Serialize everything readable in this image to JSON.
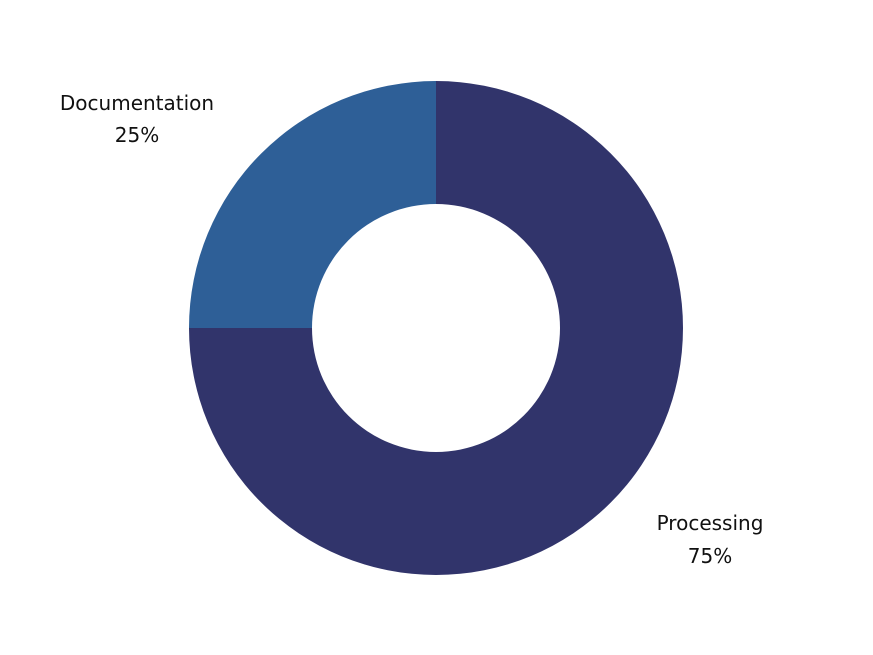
{
  "chart_data": {
    "type": "pie",
    "donut": true,
    "title": "",
    "slices": [
      {
        "label": "Processing",
        "value": 75,
        "percent_label": "75%",
        "color": "#31346b"
      },
      {
        "label": "Documentation",
        "value": 25,
        "percent_label": "25%",
        "color": "#2e5f97"
      }
    ],
    "legend": "none",
    "background": "#ffffff"
  }
}
